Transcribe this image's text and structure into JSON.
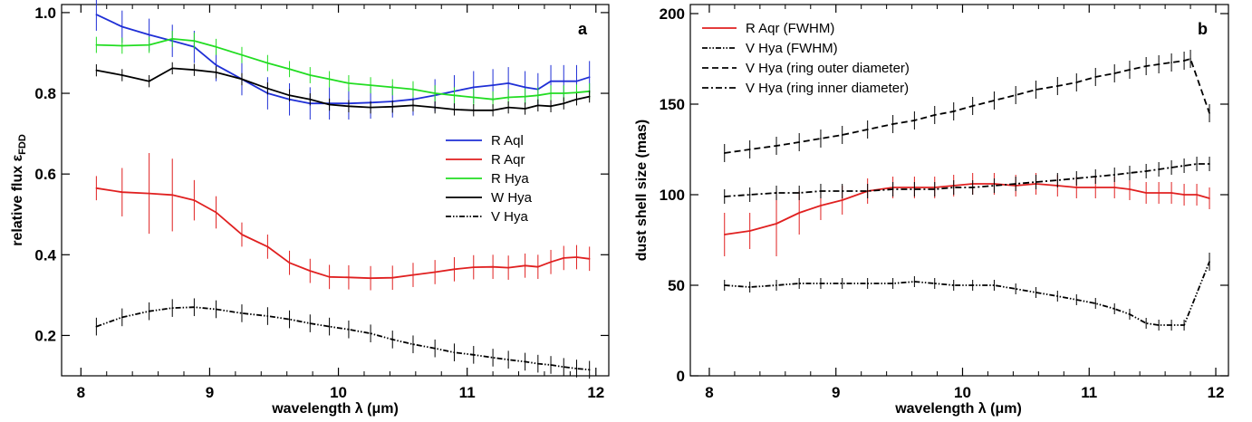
{
  "chart_data": [
    {
      "type": "line",
      "panel_label": "a",
      "xlabel": "wavelength λ (μm)",
      "ylabel": "relative flux ε",
      "ylabel_subscript": "FDD",
      "xlim": [
        7.85,
        12.1
      ],
      "ylim": [
        0.1,
        1.02
      ],
      "xticks": [
        8,
        9,
        10,
        11,
        12
      ],
      "yticks": [
        0.2,
        0.4,
        0.6,
        0.8,
        1.0
      ],
      "ytick_labels": [
        "0.2",
        "0.4",
        "0.6",
        "0.8",
        "1.0"
      ],
      "grid": false,
      "legend_position": "right",
      "x": [
        8.12,
        8.32,
        8.53,
        8.71,
        8.88,
        9.05,
        9.25,
        9.45,
        9.62,
        9.78,
        9.93,
        10.08,
        10.25,
        10.42,
        10.58,
        10.75,
        10.9,
        11.05,
        11.2,
        11.32,
        11.45,
        11.55,
        11.65,
        11.75,
        11.85,
        11.95
      ],
      "series": [
        {
          "name": "R Aql",
          "color": "#1f2fd6",
          "style": "solid",
          "values": [
            0.995,
            0.965,
            0.945,
            0.93,
            0.915,
            0.87,
            0.835,
            0.8,
            0.785,
            0.775,
            0.775,
            0.775,
            0.777,
            0.78,
            0.785,
            0.795,
            0.805,
            0.815,
            0.82,
            0.825,
            0.815,
            0.81,
            0.83,
            0.83,
            0.83,
            0.84
          ],
          "errors": [
            0.04,
            0.04,
            0.04,
            0.04,
            0.04,
            0.04,
            0.04,
            0.04,
            0.04,
            0.04,
            0.04,
            0.04,
            0.04,
            0.04,
            0.04,
            0.04,
            0.04,
            0.04,
            0.04,
            0.04,
            0.04,
            0.04,
            0.04,
            0.04,
            0.04,
            0.04
          ]
        },
        {
          "name": "R Aqr",
          "color": "#e02020",
          "style": "solid",
          "values": [
            0.565,
            0.555,
            0.552,
            0.548,
            0.535,
            0.505,
            0.45,
            0.42,
            0.38,
            0.36,
            0.345,
            0.344,
            0.342,
            0.343,
            0.35,
            0.357,
            0.364,
            0.369,
            0.37,
            0.368,
            0.373,
            0.37,
            0.382,
            0.392,
            0.394,
            0.39
          ],
          "errors": [
            0.03,
            0.06,
            0.1,
            0.09,
            0.05,
            0.04,
            0.03,
            0.03,
            0.03,
            0.03,
            0.03,
            0.03,
            0.03,
            0.03,
            0.03,
            0.03,
            0.03,
            0.03,
            0.03,
            0.03,
            0.03,
            0.03,
            0.03,
            0.03,
            0.03,
            0.03
          ]
        },
        {
          "name": "R Hya",
          "color": "#22dd22",
          "style": "solid",
          "values": [
            0.92,
            0.918,
            0.92,
            0.935,
            0.93,
            0.915,
            0.895,
            0.875,
            0.86,
            0.845,
            0.835,
            0.825,
            0.82,
            0.815,
            0.81,
            0.8,
            0.795,
            0.79,
            0.785,
            0.79,
            0.792,
            0.795,
            0.8,
            0.8,
            0.802,
            0.805
          ],
          "errors": [
            0.02,
            0.02,
            0.02,
            0.02,
            0.02,
            0.02,
            0.02,
            0.02,
            0.02,
            0.02,
            0.02,
            0.02,
            0.02,
            0.02,
            0.02,
            0.02,
            0.02,
            0.02,
            0.02,
            0.02,
            0.02,
            0.02,
            0.02,
            0.02,
            0.02,
            0.02
          ]
        },
        {
          "name": "W Hya",
          "color": "#000000",
          "style": "solid",
          "values": [
            0.857,
            0.845,
            0.83,
            0.862,
            0.858,
            0.852,
            0.835,
            0.812,
            0.795,
            0.785,
            0.772,
            0.768,
            0.765,
            0.767,
            0.77,
            0.765,
            0.76,
            0.758,
            0.758,
            0.765,
            0.762,
            0.77,
            0.768,
            0.775,
            0.785,
            0.792
          ],
          "errors": [
            0.015,
            0.015,
            0.015,
            0.015,
            0.015,
            0.015,
            0.015,
            0.015,
            0.015,
            0.015,
            0.015,
            0.015,
            0.015,
            0.015,
            0.015,
            0.015,
            0.015,
            0.015,
            0.015,
            0.015,
            0.015,
            0.015,
            0.015,
            0.015,
            0.015,
            0.015
          ]
        },
        {
          "name": "V Hya",
          "color": "#000000",
          "style": "dash-dot-dot",
          "values": [
            0.222,
            0.245,
            0.26,
            0.268,
            0.27,
            0.265,
            0.255,
            0.248,
            0.24,
            0.23,
            0.222,
            0.215,
            0.205,
            0.19,
            0.178,
            0.168,
            0.158,
            0.152,
            0.145,
            0.14,
            0.135,
            0.13,
            0.127,
            0.122,
            0.118,
            0.115
          ],
          "errors": [
            0.022,
            0.022,
            0.022,
            0.022,
            0.022,
            0.022,
            0.022,
            0.022,
            0.022,
            0.022,
            0.022,
            0.022,
            0.022,
            0.022,
            0.022,
            0.022,
            0.022,
            0.022,
            0.022,
            0.022,
            0.022,
            0.022,
            0.022,
            0.022,
            0.022,
            0.022
          ]
        }
      ]
    },
    {
      "type": "line",
      "panel_label": "b",
      "xlabel": "wavelength λ (μm)",
      "ylabel": "dust shell size (mas)",
      "xlim": [
        7.85,
        12.1
      ],
      "ylim": [
        0,
        205
      ],
      "xticks": [
        8,
        9,
        10,
        11,
        12
      ],
      "yticks": [
        0,
        50,
        100,
        150,
        200
      ],
      "ytick_labels": [
        "0",
        "50",
        "100",
        "150",
        "200"
      ],
      "grid": false,
      "legend_position": "top-left",
      "series": [
        {
          "name": "R Aqr (FWHM)",
          "color": "#e02020",
          "style": "solid",
          "x": [
            8.12,
            8.32,
            8.53,
            8.71,
            8.88,
            9.05,
            9.25,
            9.45,
            9.62,
            9.78,
            9.93,
            10.08,
            10.25,
            10.42,
            10.58,
            10.75,
            10.9,
            11.05,
            11.2,
            11.32,
            11.45,
            11.55,
            11.65,
            11.75,
            11.85,
            11.95
          ],
          "values": [
            78,
            80,
            84,
            90,
            94,
            97,
            102,
            104,
            104,
            104,
            105,
            106,
            106,
            105,
            106,
            105,
            104,
            104,
            104,
            103,
            101,
            101,
            101,
            100,
            100,
            98
          ],
          "errors": [
            12,
            10,
            18,
            12,
            8,
            8,
            7,
            6,
            6,
            6,
            6,
            6,
            6,
            6,
            6,
            6,
            6,
            6,
            6,
            6,
            6,
            6,
            6,
            6,
            6,
            6
          ]
        },
        {
          "name": "V Hya (FWHM)",
          "color": "#000000",
          "style": "dash-dot-dot",
          "x": [
            8.12,
            8.32,
            8.53,
            8.71,
            8.88,
            9.05,
            9.25,
            9.45,
            9.62,
            9.78,
            9.93,
            10.08,
            10.25,
            10.42,
            10.58,
            10.75,
            10.9,
            11.05,
            11.2,
            11.32,
            11.45,
            11.55,
            11.65,
            11.75,
            11.95
          ],
          "values": [
            50,
            49,
            50,
            51,
            51,
            51,
            51,
            51,
            52,
            51,
            50,
            50,
            50,
            48,
            46,
            44,
            42,
            40,
            37,
            34,
            29,
            28,
            28,
            28,
            63
          ],
          "errors": [
            3,
            3,
            3,
            3,
            3,
            3,
            3,
            3,
            3,
            3,
            3,
            3,
            3,
            3,
            3,
            3,
            3,
            3,
            3,
            3,
            3,
            3,
            3,
            3,
            5
          ]
        },
        {
          "name": "V Hya (ring outer diameter)",
          "color": "#000000",
          "style": "dashed",
          "x": [
            8.12,
            8.32,
            8.53,
            8.71,
            8.88,
            9.05,
            9.25,
            9.45,
            9.62,
            9.78,
            9.93,
            10.08,
            10.25,
            10.42,
            10.58,
            10.75,
            10.9,
            11.05,
            11.2,
            11.32,
            11.45,
            11.55,
            11.65,
            11.75,
            11.8,
            11.95
          ],
          "values": [
            123,
            125,
            127,
            129,
            131,
            133,
            136,
            139,
            141,
            144,
            146,
            149,
            152,
            155,
            158,
            160,
            162,
            165,
            167,
            169,
            171,
            172,
            173,
            174,
            175,
            145
          ],
          "errors": [
            5,
            5,
            5,
            5,
            5,
            5,
            5,
            5,
            5,
            5,
            5,
            5,
            5,
            5,
            5,
            5,
            5,
            5,
            5,
            5,
            5,
            5,
            5,
            5,
            5,
            5
          ]
        },
        {
          "name": "V Hya (ring inner diameter)",
          "color": "#000000",
          "style": "dash-dot",
          "x": [
            8.12,
            8.32,
            8.53,
            8.71,
            8.88,
            9.05,
            9.25,
            9.45,
            9.62,
            9.78,
            9.93,
            10.08,
            10.25,
            10.42,
            10.58,
            10.75,
            10.9,
            11.05,
            11.2,
            11.32,
            11.45,
            11.55,
            11.65,
            11.75,
            11.85,
            11.95
          ],
          "values": [
            99,
            100,
            101,
            101,
            102,
            102,
            102,
            103,
            103,
            103,
            104,
            104,
            105,
            106,
            107,
            108,
            109,
            110,
            111,
            112,
            113,
            114,
            115,
            116,
            117,
            117
          ],
          "errors": [
            4,
            4,
            4,
            4,
            4,
            4,
            4,
            4,
            4,
            4,
            4,
            4,
            4,
            4,
            4,
            4,
            4,
            4,
            4,
            4,
            4,
            4,
            4,
            4,
            4,
            4
          ]
        }
      ]
    }
  ]
}
